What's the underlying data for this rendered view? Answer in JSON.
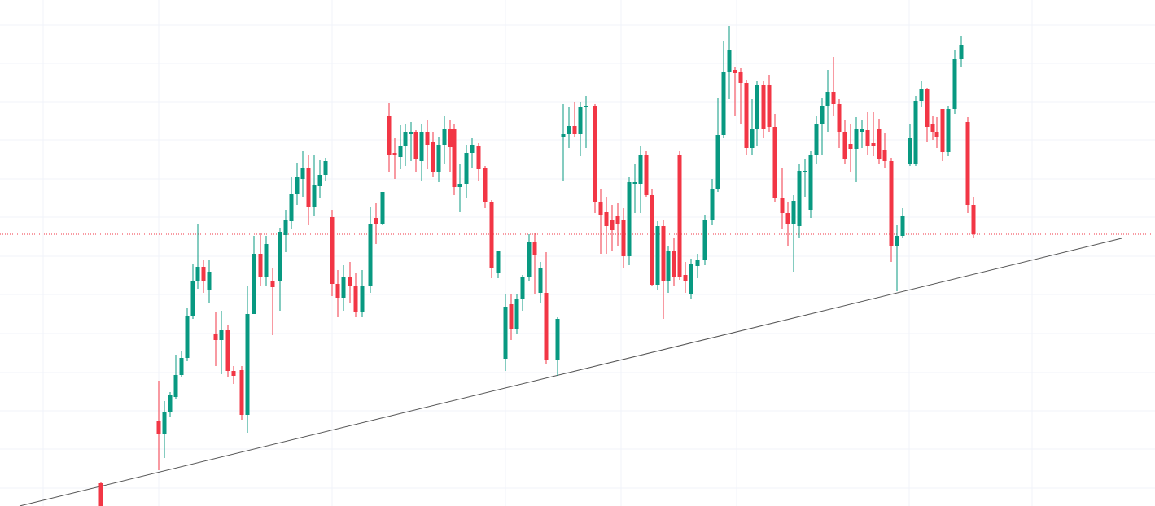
{
  "chart_data": {
    "type": "candlestick",
    "x": [
      124,
      195,
      202,
      209,
      216,
      223,
      230,
      237,
      243,
      250,
      257,
      265,
      272,
      280,
      287,
      297,
      304,
      312,
      320,
      327,
      335,
      344,
      351,
      358,
      365,
      372,
      379,
      386,
      393,
      400,
      408,
      415,
      422,
      430,
      437,
      445,
      455,
      462,
      470,
      478,
      485,
      492,
      498,
      505,
      511,
      518,
      525,
      532,
      539,
      546,
      553,
      558,
      565,
      573,
      580,
      588,
      596,
      604,
      612,
      621,
      628,
      635,
      642,
      650,
      657,
      664,
      671,
      685,
      692,
      699,
      706,
      713,
      720,
      731,
      738,
      745,
      752,
      759,
      766,
      773,
      780,
      787,
      794,
      801,
      808,
      815,
      821,
      828,
      835,
      842,
      849,
      857,
      866,
      875,
      882,
      889,
      896,
      903,
      910,
      917,
      924,
      930,
      938,
      945,
      952,
      961,
      968,
      975,
      982,
      989,
      996,
      1003,
      1010,
      1017,
      1024,
      1031,
      1038,
      1045,
      1052,
      1059,
      1066,
      1073,
      1080,
      1087,
      1095,
      1102,
      1109,
      1118,
      1125,
      1132,
      1139,
      1146,
      1151,
      1158,
      1165,
      1173,
      1181,
      1189,
      1196
    ],
    "open": [
      28,
      104,
      89,
      116,
      134,
      161,
      182,
      234,
      276,
      294,
      265,
      211,
      204,
      216,
      166,
      167,
      112,
      236,
      310,
      282,
      277,
      277,
      333,
      350,
      384,
      402,
      415,
      368,
      393,
      407,
      355,
      273,
      256,
      282,
      270,
      238,
      270,
      354,
      347,
      480,
      434,
      429,
      442,
      457,
      460,
      424,
      460,
      447,
      410,
      444,
      464,
      464,
      392,
      396,
      434,
      442,
      415,
      374,
      286,
      181,
      248,
      218,
      254,
      282,
      324,
      262,
      262,
      180,
      454,
      457,
      467,
      457,
      490,
      492,
      374,
      362,
      352,
      356,
      352,
      307,
      396,
      396,
      432,
      382,
      272,
      344,
      276,
      314,
      432,
      284,
      260,
      295,
      302,
      352,
      390,
      456,
      534,
      536,
      534,
      520,
      440,
      464,
      518,
      518,
      466,
      379,
      360,
      347,
      344,
      410,
      364,
      432,
      470,
      492,
      509,
      494,
      460,
      445,
      439,
      460,
      462,
      446,
      464,
      437,
      424,
      320,
      332,
      420,
      420,
      498,
      512,
      470,
      460,
      488,
      435,
      488,
      550,
      472,
      370
    ],
    "high": [
      30,
      154,
      129,
      140,
      186,
      190,
      244,
      298,
      347,
      302,
      302,
      238,
      240,
      222,
      172,
      172,
      270,
      332,
      336,
      332,
      292,
      342,
      364,
      404,
      422,
      436,
      432,
      432,
      425,
      428,
      364,
      290,
      296,
      300,
      286,
      290,
      368,
      372,
      386,
      496,
      452,
      468,
      470,
      472,
      462,
      470,
      474,
      460,
      454,
      480,
      474,
      470,
      420,
      444,
      452,
      446,
      418,
      376,
      314,
      260,
      260,
      260,
      284,
      334,
      336,
      300,
      312,
      232,
      494,
      490,
      497,
      497,
      504,
      494,
      390,
      380,
      370,
      372,
      366,
      404,
      420,
      442,
      436,
      390,
      350,
      352,
      320,
      330,
      436,
      300,
      304,
      310,
      358,
      402,
      502,
      572,
      590,
      540,
      538,
      524,
      500,
      522,
      522,
      530,
      482,
      416,
      374,
      382,
      420,
      426,
      436,
      480,
      502,
      536,
      552,
      500,
      474,
      470,
      478,
      474,
      484,
      484,
      476,
      458,
      428,
      346,
      366,
      470,
      504,
      522,
      514,
      480,
      478,
      488,
      492,
      560,
      578,
      478,
      380
    ],
    "low": [
      0,
      44,
      59,
      110,
      132,
      158,
      178,
      230,
      267,
      262,
      250,
      172,
      162,
      158,
      150,
      106,
      90,
      236,
      270,
      270,
      210,
      240,
      312,
      340,
      370,
      380,
      346,
      356,
      378,
      400,
      258,
      232,
      240,
      250,
      232,
      232,
      262,
      322,
      346,
      410,
      402,
      414,
      418,
      424,
      410,
      400,
      414,
      404,
      398,
      420,
      410,
      382,
      362,
      378,
      416,
      400,
      366,
      280,
      280,
      166,
      204,
      212,
      240,
      276,
      260,
      250,
      174,
      160,
      400,
      440,
      454,
      430,
      440,
      360,
      310,
      310,
      314,
      320,
      292,
      296,
      360,
      360,
      380,
      270,
      266,
      230,
      262,
      270,
      278,
      262,
      254,
      280,
      296,
      346,
      386,
      452,
      500,
      480,
      470,
      432,
      432,
      442,
      452,
      460,
      374,
      340,
      320,
      288,
      330,
      380,
      354,
      420,
      432,
      460,
      480,
      440,
      420,
      410,
      398,
      440,
      432,
      430,
      420,
      416,
      300,
      264,
      330,
      418,
      418,
      490,
      448,
      450,
      440,
      424,
      430,
      482,
      540,
      360,
      330
    ],
    "close": [
      0,
      89,
      116,
      136,
      161,
      182,
      234,
      276,
      294,
      276,
      288,
      204,
      216,
      166,
      160,
      112,
      236,
      310,
      282,
      322,
      269,
      337,
      352,
      384,
      404,
      415,
      368,
      394,
      407,
      424,
      273,
      256,
      282,
      270,
      238,
      270,
      347,
      347,
      386,
      432,
      432,
      442,
      460,
      460,
      426,
      460,
      444,
      410,
      444,
      464,
      441,
      392,
      396,
      434,
      444,
      414,
      374,
      292,
      314,
      245,
      218,
      254,
      282,
      324,
      308,
      292,
      180,
      230,
      457,
      467,
      457,
      491,
      492,
      374,
      358,
      344,
      339,
      347,
      307,
      398,
      398,
      432,
      382,
      272,
      344,
      276,
      314,
      282,
      282,
      277,
      297,
      302,
      352,
      390,
      456,
      534,
      560,
      532,
      520,
      440,
      464,
      518,
      464,
      466,
      379,
      360,
      347,
      375,
      412,
      412,
      432,
      470,
      492,
      509,
      494,
      460,
      427,
      439,
      464,
      464,
      442,
      442,
      427,
      424,
      320,
      332,
      356,
      452,
      498,
      512,
      466,
      460,
      454,
      435,
      488,
      550,
      567,
      370,
      334
    ],
    "up_color": "#089981",
    "down_color": "#f23645",
    "xlim": [
      0,
      1419
    ],
    "ylim": [
      0,
      622
    ],
    "xticks": [
      53,
      195,
      408,
      621,
      763,
      905,
      1117,
      1268
    ],
    "yticks": [
      22,
      70,
      117,
      164,
      212,
      260,
      307,
      355,
      402,
      450,
      497,
      544,
      591
    ],
    "grid": true,
    "grid_color": "#f0f3fa",
    "price_line": {
      "value": 334,
      "color": "#f23645"
    },
    "trend_line": {
      "x": [
        24,
        1378
      ],
      "values": [
        0,
        329
      ],
      "color": "#555555"
    }
  }
}
